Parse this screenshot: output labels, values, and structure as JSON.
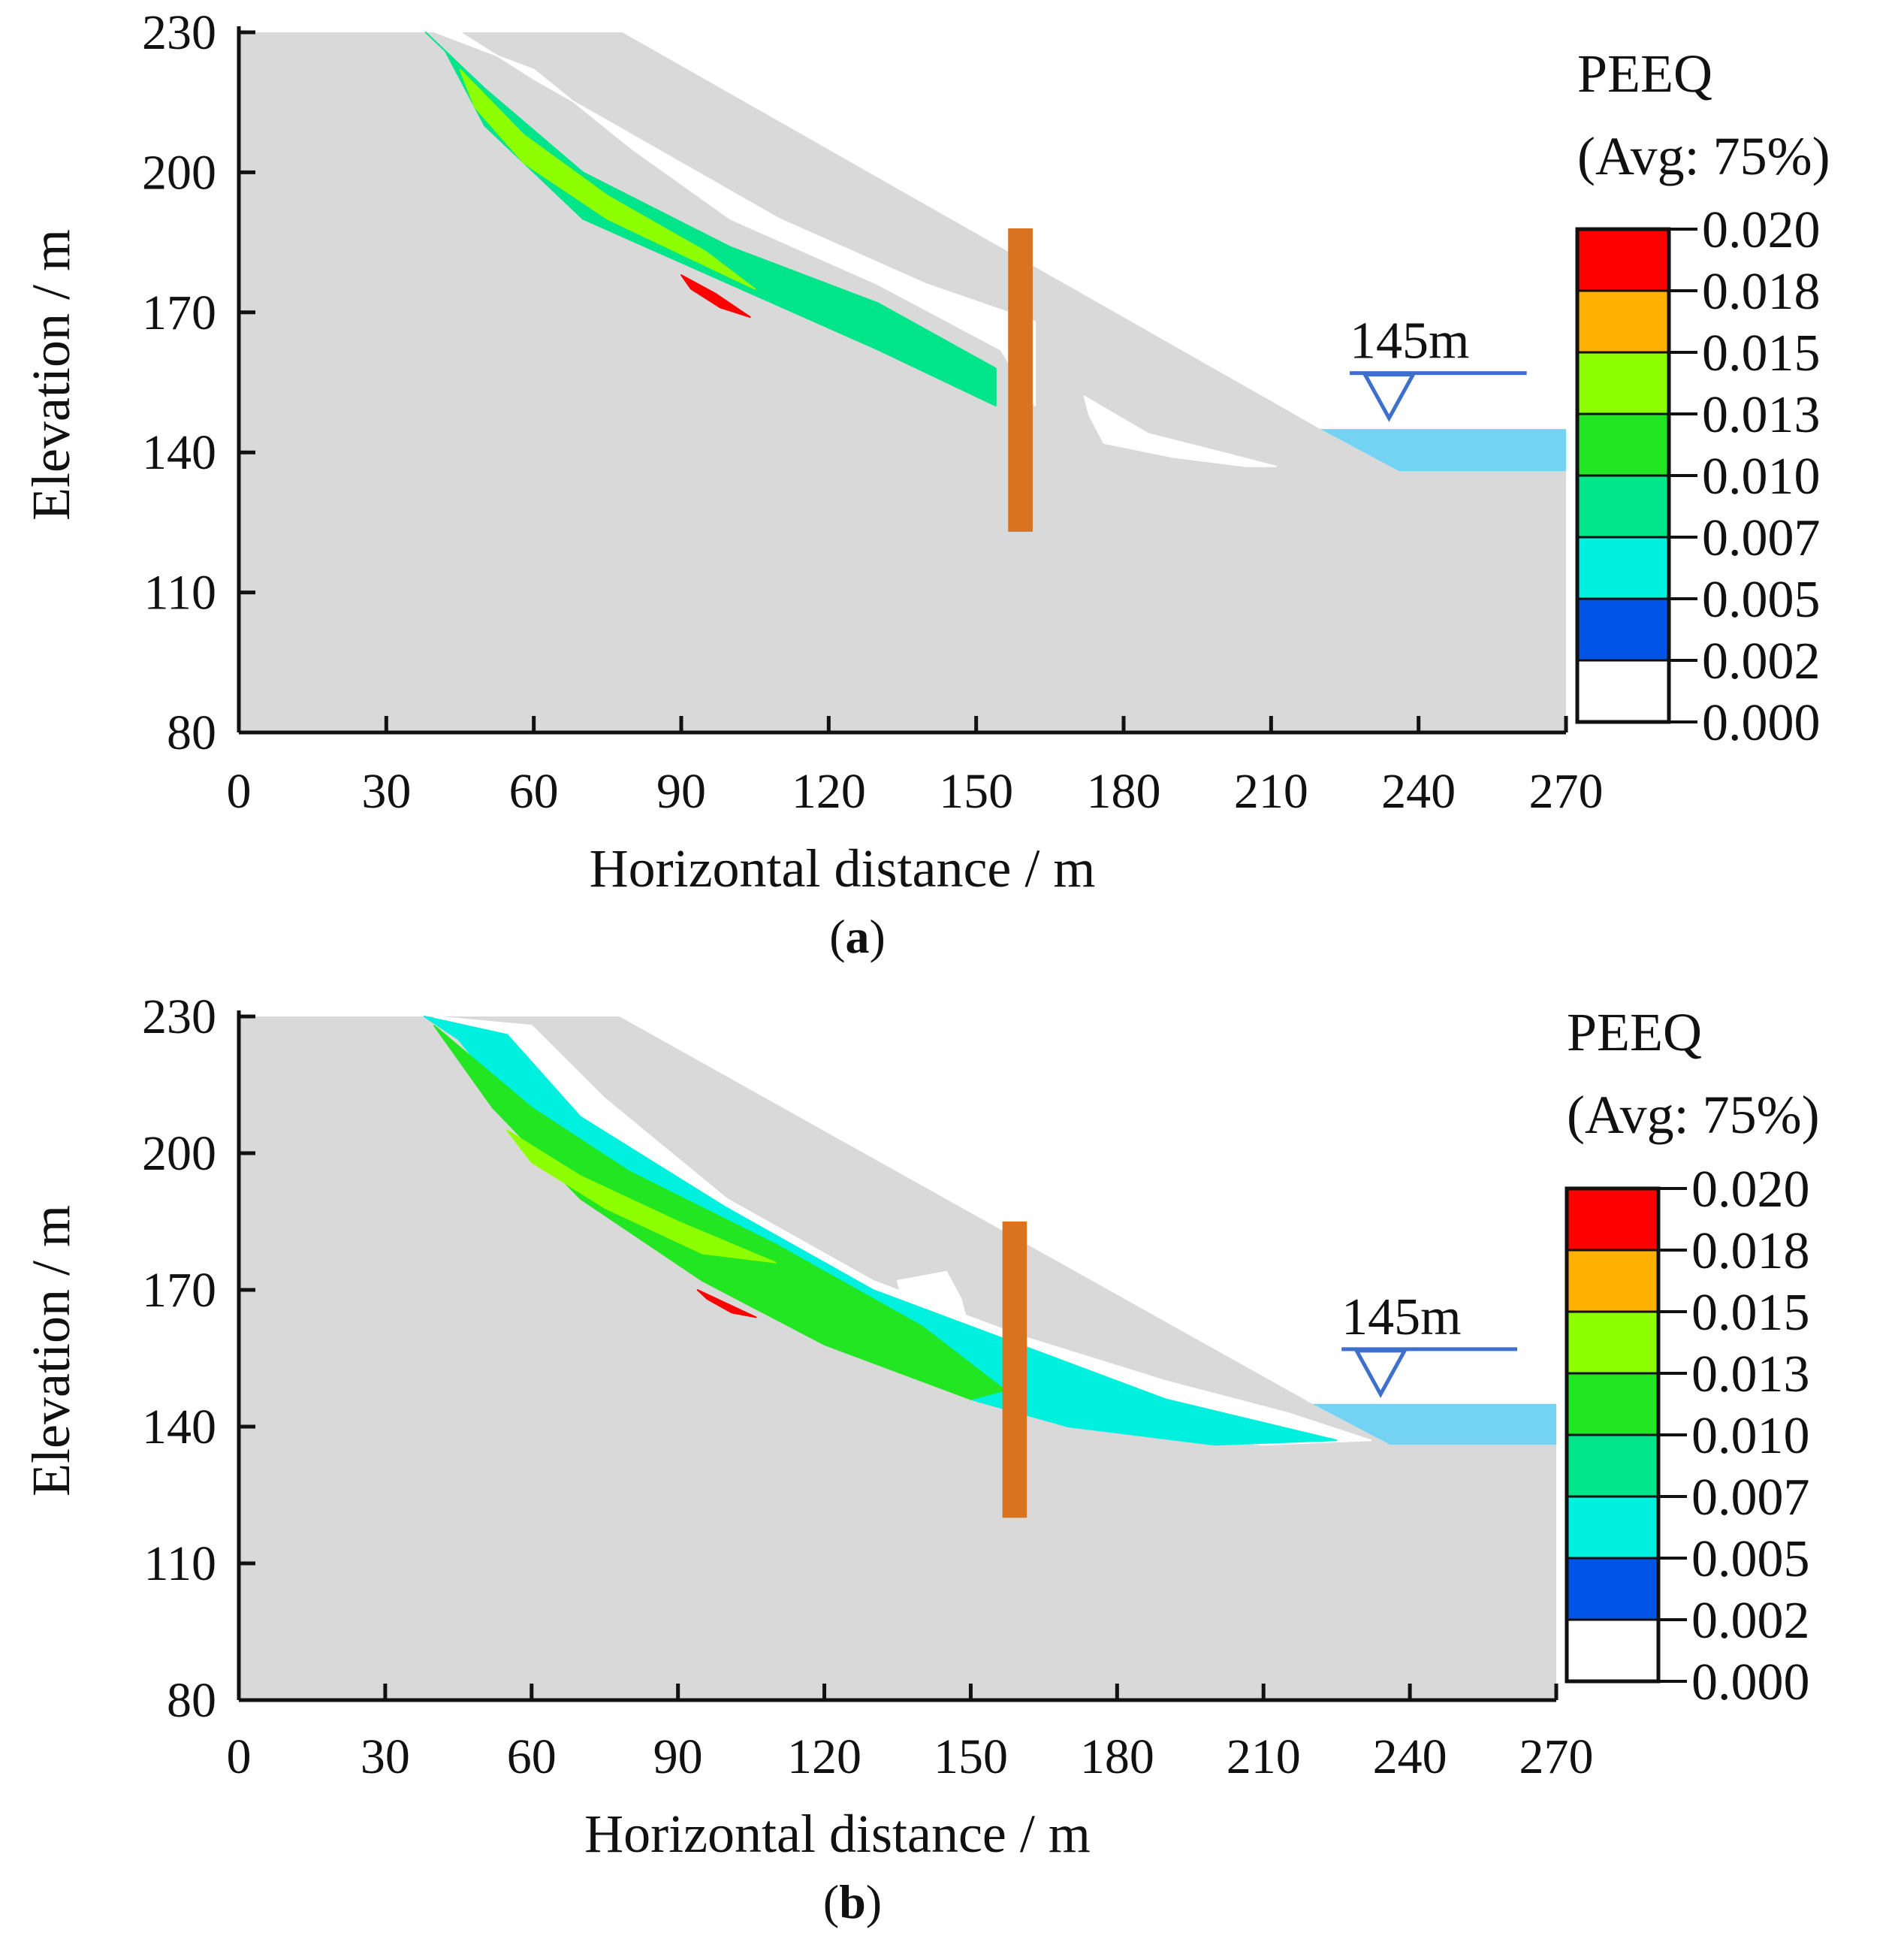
{
  "colors": {
    "slope": "#d9d9d9",
    "pile": "#d9731f",
    "water": "#74d3f2",
    "water_line": "#3d6fcc",
    "axis": "#111111"
  },
  "chart_data": [
    {
      "type": "contour",
      "panel_label": "a",
      "xlabel": "Horizontal distance / m",
      "ylabel": "Elevation / m",
      "xlim": [
        0,
        270
      ],
      "ylim": [
        80,
        230
      ],
      "xticks": [
        0,
        30,
        60,
        90,
        120,
        150,
        180,
        210,
        240,
        270
      ],
      "yticks": [
        80,
        110,
        140,
        170,
        200,
        230
      ],
      "legend": {
        "title": "PEEQ",
        "subtitle": "(Avg: 75%)",
        "values": [
          "0.020",
          "0.018",
          "0.015",
          "0.013",
          "0.010",
          "0.007",
          "0.005",
          "0.002",
          "0.000"
        ],
        "colors": [
          "#ff0000",
          "#ffb000",
          "#8dff00",
          "#22e622",
          "#00e48a",
          "#00f0e0",
          "#0055e6",
          "#ffffff"
        ]
      },
      "water_level": {
        "label": "145m",
        "elevation": 145
      },
      "slope_profile": [
        [
          0,
          230
        ],
        [
          78,
          230
        ],
        [
          220,
          145
        ],
        [
          236,
          136
        ],
        [
          270,
          136
        ],
        [
          270,
          80
        ],
        [
          0,
          80
        ]
      ],
      "water_body": [
        [
          220,
          145
        ],
        [
          270,
          145
        ],
        [
          270,
          136
        ],
        [
          236,
          136
        ]
      ],
      "pile": {
        "x": 159,
        "bottom": 123,
        "top": 188
      },
      "zones": [
        {
          "level": "0.002",
          "points": [
            [
              40,
              230
            ],
            [
              60,
              222
            ],
            [
              80,
              205
            ],
            [
              100,
              190
            ],
            [
              130,
              176
            ],
            [
              155,
              162
            ],
            [
              162,
              150
            ],
            [
              162,
              168
            ],
            [
              140,
              176
            ],
            [
              110,
              190
            ],
            [
              85,
              205
            ],
            [
              60,
              220
            ],
            [
              45,
              230
            ]
          ]
        },
        {
          "level": "0.002",
          "points": [
            [
              172,
              152
            ],
            [
              185,
              144
            ],
            [
              200,
              140
            ],
            [
              211,
              137
            ],
            [
              205,
              137
            ],
            [
              190,
              139
            ],
            [
              176,
              142
            ],
            [
              173,
              148
            ]
          ]
        },
        {
          "level": "0.010",
          "points": [
            [
              38,
              230
            ],
            [
              50,
              218
            ],
            [
              70,
              200
            ],
            [
              100,
              184
            ],
            [
              130,
              172
            ],
            [
              154,
              158
            ],
            [
              154,
              150
            ],
            [
              130,
              162
            ],
            [
              100,
              176
            ],
            [
              70,
              190
            ],
            [
              50,
              210
            ],
            [
              42,
              226
            ]
          ]
        },
        {
          "level": "0.015",
          "points": [
            [
              45,
              222
            ],
            [
              58,
              208
            ],
            [
              75,
              195
            ],
            [
              95,
              183
            ],
            [
              105,
              175
            ],
            [
              95,
              180
            ],
            [
              75,
              190
            ],
            [
              58,
              202
            ],
            [
              48,
              214
            ]
          ]
        },
        {
          "level": "0.020",
          "points": [
            [
              90,
              178
            ],
            [
              97,
              174
            ],
            [
              104,
              169
            ],
            [
              98,
              171
            ],
            [
              92,
              175
            ]
          ]
        }
      ]
    },
    {
      "type": "contour",
      "panel_label": "b",
      "xlabel": "Horizontal distance / m",
      "ylabel": "Elevation / m",
      "xlim": [
        0,
        270
      ],
      "ylim": [
        80,
        230
      ],
      "xticks": [
        0,
        30,
        60,
        90,
        120,
        150,
        180,
        210,
        240,
        270
      ],
      "yticks": [
        80,
        110,
        140,
        170,
        200,
        230
      ],
      "legend": {
        "title": "PEEQ",
        "subtitle": "(Avg: 75%)",
        "values": [
          "0.020",
          "0.018",
          "0.015",
          "0.013",
          "0.010",
          "0.007",
          "0.005",
          "0.002",
          "0.000"
        ],
        "colors": [
          "#ff0000",
          "#ffb000",
          "#8dff00",
          "#22e622",
          "#00e48a",
          "#00f0e0",
          "#0055e6",
          "#ffffff"
        ]
      },
      "water_level": {
        "label": "145m",
        "elevation": 145
      },
      "slope_profile": [
        [
          0,
          230
        ],
        [
          78,
          230
        ],
        [
          220,
          145
        ],
        [
          236,
          136
        ],
        [
          270,
          136
        ],
        [
          270,
          80
        ],
        [
          0,
          80
        ]
      ],
      "water_body": [
        [
          220,
          145
        ],
        [
          270,
          145
        ],
        [
          270,
          136
        ],
        [
          236,
          136
        ]
      ],
      "pile": {
        "x": 159,
        "bottom": 120,
        "top": 185
      },
      "zones": [
        {
          "level": "0.002",
          "points": [
            [
              40,
              230
            ],
            [
              60,
              228
            ],
            [
              75,
              212
            ],
            [
              100,
              190
            ],
            [
              130,
              172
            ],
            [
              160,
              160
            ],
            [
              190,
              150
            ],
            [
              215,
              143
            ],
            [
              232,
              137
            ],
            [
              210,
              136
            ],
            [
              180,
              140
            ],
            [
              160,
              145
            ],
            [
              130,
              158
            ],
            [
              100,
              175
            ],
            [
              70,
              200
            ],
            [
              48,
              222
            ]
          ]
        },
        {
          "level": "0.002",
          "points": [
            [
              135,
              172
            ],
            [
              145,
              174
            ],
            [
              148,
              168
            ],
            [
              150,
              160
            ],
            [
              142,
              164
            ],
            [
              136,
              168
            ]
          ]
        },
        {
          "level": "0.007",
          "points": [
            [
              38,
              230
            ],
            [
              55,
              226
            ],
            [
              70,
              208
            ],
            [
              100,
              188
            ],
            [
              130,
              170
            ],
            [
              160,
              158
            ],
            [
              190,
              146
            ],
            [
              225,
              137
            ],
            [
              200,
              136
            ],
            [
              170,
              140
            ],
            [
              150,
              146
            ],
            [
              120,
              160
            ],
            [
              90,
              180
            ],
            [
              60,
              205
            ],
            [
              45,
              225
            ]
          ]
        },
        {
          "level": "0.013",
          "points": [
            [
              40,
              228
            ],
            [
              60,
              210
            ],
            [
              80,
              196
            ],
            [
              110,
              180
            ],
            [
              140,
              162
            ],
            [
              157,
              148
            ],
            [
              150,
              146
            ],
            [
              120,
              158
            ],
            [
              95,
              172
            ],
            [
              70,
              190
            ],
            [
              52,
              210
            ]
          ]
        },
        {
          "level": "0.015",
          "points": [
            [
              55,
              205
            ],
            [
              70,
              195
            ],
            [
              90,
              185
            ],
            [
              110,
              176
            ],
            [
              95,
              178
            ],
            [
              75,
              188
            ],
            [
              60,
              198
            ]
          ]
        },
        {
          "level": "0.020",
          "points": [
            [
              94,
              170
            ],
            [
              100,
              167
            ],
            [
              106,
              164
            ],
            [
              101,
              165
            ],
            [
              96,
              168
            ]
          ]
        }
      ]
    }
  ]
}
